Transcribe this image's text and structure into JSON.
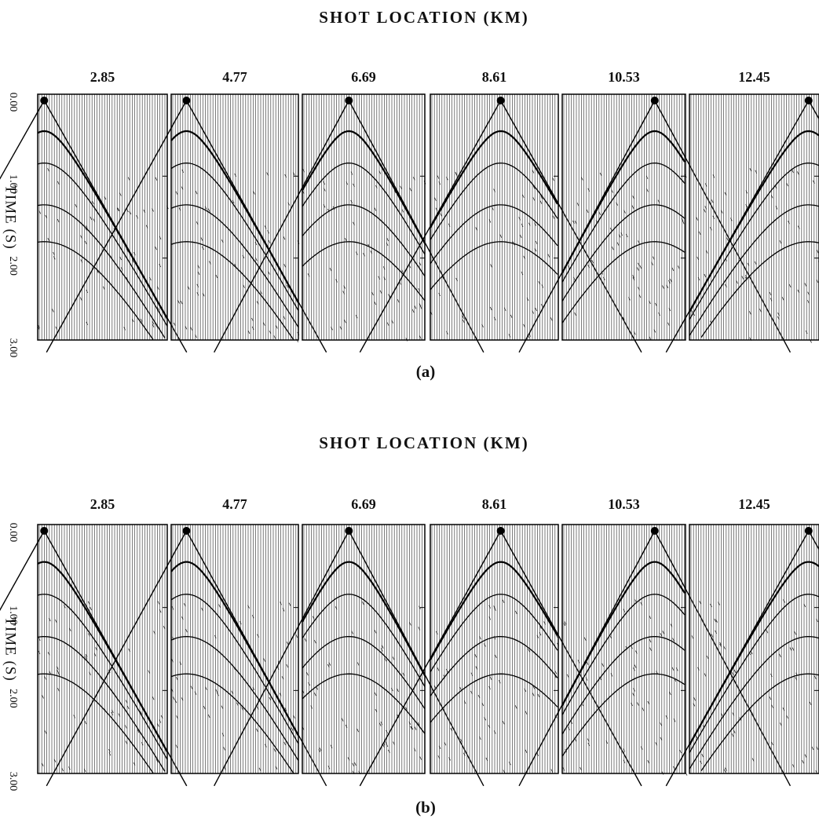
{
  "figures": [
    {
      "title": "SHOT LOCATION (KM)",
      "shots": [
        "2.85",
        "4.77",
        "6.69",
        "8.61",
        "10.53",
        "12.45"
      ],
      "y_axis_label": "TIME (S)",
      "y_ticks": [
        "0.00",
        "1.00",
        "2.00",
        "3.00"
      ],
      "caption": "(a)"
    },
    {
      "title": "SHOT LOCATION (KM)",
      "shots": [
        "2.85",
        "4.77",
        "6.69",
        "8.61",
        "10.53",
        "12.45"
      ],
      "y_axis_label": "TIME (S)",
      "y_ticks": [
        "0.00",
        "1.00",
        "2.00",
        "3.00"
      ],
      "caption": "(b)"
    }
  ]
}
